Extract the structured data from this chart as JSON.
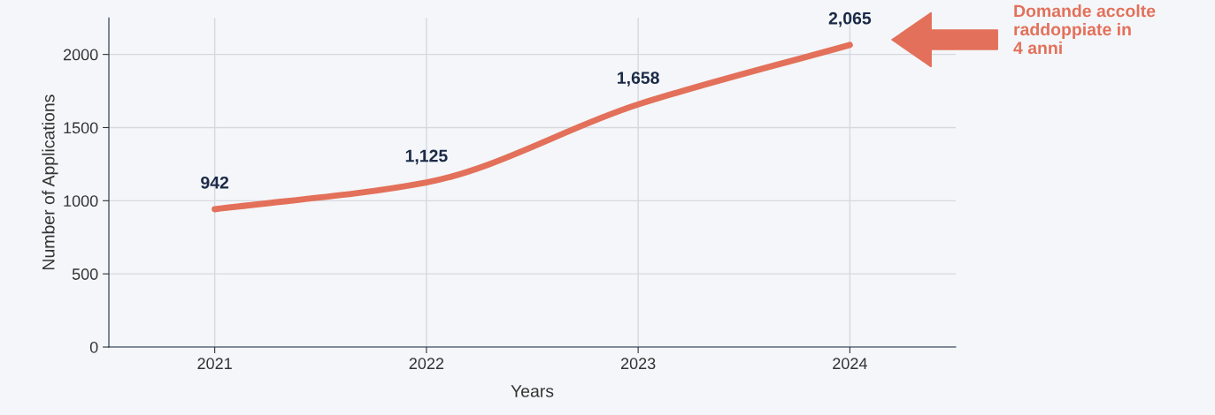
{
  "chart_data": {
    "type": "line",
    "xlabel": "Years",
    "ylabel": "Number of Applications",
    "categories": [
      "2021",
      "2022",
      "2023",
      "2024"
    ],
    "series": [
      {
        "color": "#e3705a",
        "values": [
          942,
          1125,
          1658,
          2065
        ]
      }
    ],
    "value_labels": [
      "942",
      "1,125",
      "1,658",
      "2,065"
    ],
    "ylim": [
      0,
      2250
    ],
    "yticks": [
      0,
      500,
      1000,
      1500,
      2000
    ],
    "grid": true,
    "marker": "none",
    "line_style": "solid",
    "annotations": [
      "Domande accolte\nraddoppiate in\n4 anni"
    ]
  }
}
